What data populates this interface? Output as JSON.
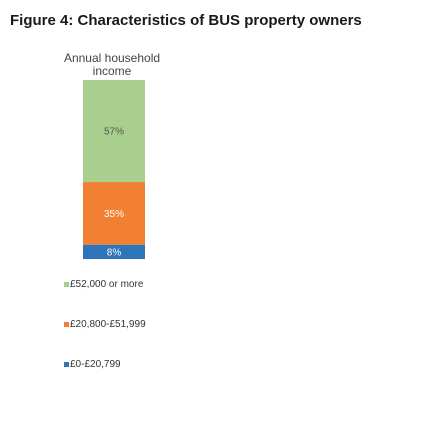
{
  "figure_title": "Figure 4: Characteristics of BUS property owners",
  "chart_data": {
    "type": "bar",
    "stacked": true,
    "categories": [
      "Annual household income"
    ],
    "series": [
      {
        "name": "£52,000 or more",
        "values": [
          57
        ],
        "label": "57%",
        "color": "#a9cf8e"
      },
      {
        "name": "£20,800-£51,999",
        "values": [
          35
        ],
        "label": "35%",
        "color": "#f28033"
      },
      {
        "name": "£0-£20,799",
        "values": [
          8
        ],
        "label": "8%",
        "color": "#2d74b8"
      }
    ],
    "title": "Figure 4: Characteristics of BUS property owners",
    "xlabel": "Annual household income",
    "ylabel": "",
    "ylim": [
      0,
      100
    ],
    "grid": false,
    "legend": "bottom-left"
  }
}
